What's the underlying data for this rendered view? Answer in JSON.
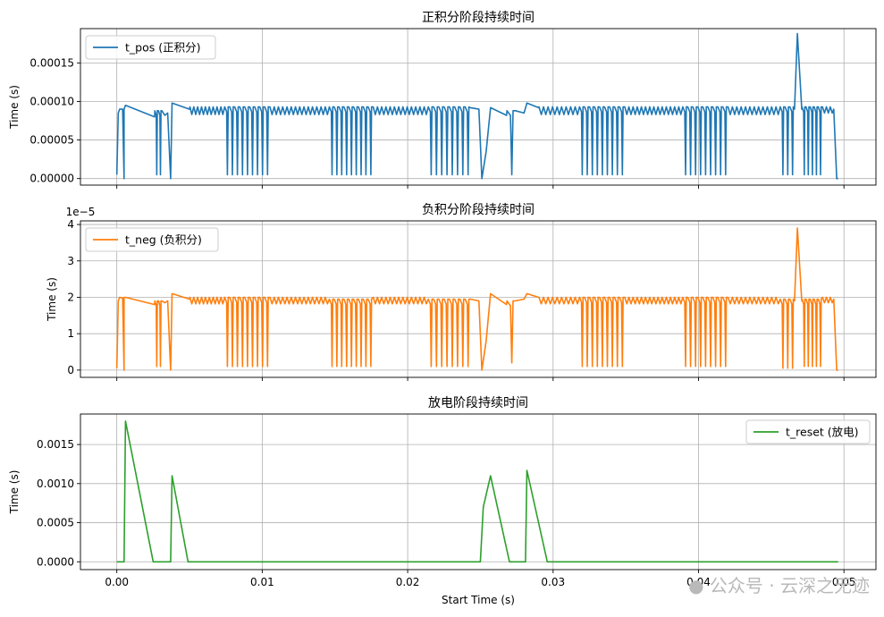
{
  "chart_data": [
    {
      "type": "line",
      "title": "正积分阶段持续时间",
      "ylabel": "Time (s)",
      "xlabel": "",
      "xlim": [
        -0.0025,
        0.0522
      ],
      "ylim": [
        -8.5e-06,
        0.0001945
      ],
      "yticks": [
        0,
        5e-05,
        0.0001,
        0.00015
      ],
      "yticklabels": [
        "0.00000",
        "0.00005",
        "0.00010",
        "0.00015"
      ],
      "grid": true,
      "legend_position": "upper-left",
      "color": "#1f77b4",
      "series": [
        {
          "name": "t_pos (正积分)",
          "seg_segments": [
            {
              "mode": "line",
              "points": [
                [
                  0.0,
                  5e-06
                ],
                [
                  0.0001,
                  8.5e-05
                ],
                [
                  0.0002,
                  9e-05
                ],
                [
                  0.0004,
                  9e-05
                ],
                [
                  0.0005,
                  0.0
                ],
                [
                  0.0005,
                  9e-05
                ],
                [
                  0.0006,
                  9.5e-05
                ],
                [
                  0.0026,
                  8e-05
                ]
              ]
            },
            {
              "mode": "dip",
              "x0": 0.0026,
              "x1": 0.0031,
              "n": 2,
              "peak": 8.8e-05,
              "low": 5e-06
            },
            {
              "mode": "line",
              "points": [
                [
                  0.0031,
                  8.8e-05
                ],
                [
                  0.0033,
                  8.2e-05
                ],
                [
                  0.0035,
                  8.5e-05
                ],
                [
                  0.0037,
                  0.0
                ],
                [
                  0.0038,
                  9.8e-05
                ],
                [
                  0.005,
                  9e-05
                ]
              ]
            },
            {
              "mode": "wave",
              "x0": 0.005,
              "x1": 0.0074,
              "n": 9,
              "peak": 9.3e-05,
              "low": 8.3e-05
            },
            {
              "mode": "dip",
              "x0": 0.0074,
              "x1": 0.0105,
              "n": 9,
              "peak": 9.3e-05,
              "low": 5e-06
            },
            {
              "mode": "wave",
              "x0": 0.0105,
              "x1": 0.0146,
              "n": 14,
              "peak": 9.3e-05,
              "low": 8.3e-05
            },
            {
              "mode": "dip",
              "x0": 0.0146,
              "x1": 0.0176,
              "n": 9,
              "peak": 9.3e-05,
              "low": 5e-06
            },
            {
              "mode": "wave",
              "x0": 0.0176,
              "x1": 0.0214,
              "n": 13,
              "peak": 9.3e-05,
              "low": 8.3e-05
            },
            {
              "mode": "dip",
              "x0": 0.0214,
              "x1": 0.0243,
              "n": 8,
              "peak": 9.3e-05,
              "low": 5e-06
            },
            {
              "mode": "line",
              "points": [
                [
                  0.0243,
                  9.2e-05
                ],
                [
                  0.0249,
                  9e-05
                ],
                [
                  0.0251,
                  0.0
                ],
                [
                  0.0254,
                  3.5e-05
                ],
                [
                  0.0257,
                  9.2e-05
                ],
                [
                  0.0268,
                  8.2e-05
                ]
              ]
            },
            {
              "mode": "dip",
              "x0": 0.0268,
              "x1": 0.0274,
              "n": 1,
              "peak": 8.8e-05,
              "low": 5e-06
            },
            {
              "mode": "line",
              "points": [
                [
                  0.0274,
                  8.8e-05
                ],
                [
                  0.028,
                  8.5e-05
                ],
                [
                  0.0282,
                  9.8e-05
                ],
                [
                  0.029,
                  9.2e-05
                ]
              ]
            },
            {
              "mode": "wave",
              "x0": 0.029,
              "x1": 0.0318,
              "n": 9,
              "peak": 9.3e-05,
              "low": 8.3e-05
            },
            {
              "mode": "dip",
              "x0": 0.0318,
              "x1": 0.0349,
              "n": 9,
              "peak": 9.3e-05,
              "low": 5e-06
            },
            {
              "mode": "wave",
              "x0": 0.0349,
              "x1": 0.0389,
              "n": 14,
              "peak": 9.3e-05,
              "low": 8.3e-05
            },
            {
              "mode": "dip",
              "x0": 0.0389,
              "x1": 0.042,
              "n": 9,
              "peak": 9.3e-05,
              "low": 5e-06
            },
            {
              "mode": "wave",
              "x0": 0.042,
              "x1": 0.0456,
              "n": 12,
              "peak": 9.3e-05,
              "low": 8.3e-05
            },
            {
              "mode": "dip",
              "x0": 0.0456,
              "x1": 0.0466,
              "n": 3,
              "peak": 9.3e-05,
              "low": 5e-06
            },
            {
              "mode": "line",
              "points": [
                [
                  0.0466,
                  9e-05
                ],
                [
                  0.0468,
                  0.000188
                ],
                [
                  0.0471,
                  9e-05
                ]
              ]
            },
            {
              "mode": "dip",
              "x0": 0.0471,
              "x1": 0.0485,
              "n": 5,
              "peak": 9.3e-05,
              "low": 5e-06
            },
            {
              "mode": "wave",
              "x0": 0.0485,
              "x1": 0.0493,
              "n": 3,
              "peak": 9.3e-05,
              "low": 8.5e-05
            },
            {
              "mode": "line",
              "points": [
                [
                  0.0493,
                  9e-05
                ],
                [
                  0.0495,
                  0.0
                ],
                [
                  0.0496,
                  0.0
                ]
              ]
            }
          ]
        }
      ]
    },
    {
      "type": "line",
      "title": "负积分阶段持续时间",
      "ylabel": "Time (s)",
      "xlabel": "",
      "offset_text": "1e−5",
      "xlim": [
        -0.0025,
        0.0522
      ],
      "ylim": [
        -0.2,
        4.1
      ],
      "yticks": [
        0,
        1,
        2,
        3,
        4
      ],
      "yticklabels": [
        "0",
        "1",
        "2",
        "3",
        "4"
      ],
      "grid": true,
      "legend_position": "upper-left",
      "color": "#ff7f0e",
      "series": [
        {
          "name": "t_neg (负积分)",
          "seg_segments": [
            {
              "mode": "line",
              "points": [
                [
                  0.0,
                  0.05
                ],
                [
                  0.0001,
                  1.9
                ],
                [
                  0.0002,
                  2.0
                ],
                [
                  0.0004,
                  1.98
                ],
                [
                  0.0005,
                  0.0
                ],
                [
                  0.0005,
                  2.0
                ],
                [
                  0.0006,
                  2.0
                ],
                [
                  0.0026,
                  1.8
                ]
              ]
            },
            {
              "mode": "dip",
              "x0": 0.0026,
              "x1": 0.0031,
              "n": 2,
              "peak": 1.9,
              "low": 0.1
            },
            {
              "mode": "line",
              "points": [
                [
                  0.0031,
                  1.9
                ],
                [
                  0.0033,
                  1.85
                ],
                [
                  0.0035,
                  1.9
                ],
                [
                  0.0037,
                  0.0
                ],
                [
                  0.0038,
                  2.1
                ],
                [
                  0.005,
                  1.95
                ]
              ]
            },
            {
              "mode": "wave",
              "x0": 0.005,
              "x1": 0.0074,
              "n": 9,
              "peak": 2.0,
              "low": 1.82
            },
            {
              "mode": "dip",
              "x0": 0.0074,
              "x1": 0.0105,
              "n": 9,
              "peak": 2.0,
              "low": 0.1
            },
            {
              "mode": "wave",
              "x0": 0.0105,
              "x1": 0.0146,
              "n": 14,
              "peak": 2.0,
              "low": 1.82
            },
            {
              "mode": "dip",
              "x0": 0.0146,
              "x1": 0.0176,
              "n": 9,
              "peak": 1.95,
              "low": 0.1
            },
            {
              "mode": "wave",
              "x0": 0.0176,
              "x1": 0.0214,
              "n": 13,
              "peak": 2.0,
              "low": 1.82
            },
            {
              "mode": "dip",
              "x0": 0.0214,
              "x1": 0.0243,
              "n": 8,
              "peak": 1.95,
              "low": 0.1
            },
            {
              "mode": "line",
              "points": [
                [
                  0.0243,
                  1.95
                ],
                [
                  0.0249,
                  1.9
                ],
                [
                  0.0251,
                  0.0
                ],
                [
                  0.0254,
                  0.8
                ],
                [
                  0.0257,
                  2.1
                ],
                [
                  0.0268,
                  1.8
                ]
              ]
            },
            {
              "mode": "dip",
              "x0": 0.0268,
              "x1": 0.0274,
              "n": 1,
              "peak": 1.9,
              "low": 0.2
            },
            {
              "mode": "line",
              "points": [
                [
                  0.0274,
                  1.9
                ],
                [
                  0.028,
                  1.95
                ],
                [
                  0.0282,
                  2.1
                ],
                [
                  0.029,
                  2.0
                ]
              ]
            },
            {
              "mode": "wave",
              "x0": 0.029,
              "x1": 0.0318,
              "n": 9,
              "peak": 2.0,
              "low": 1.82
            },
            {
              "mode": "dip",
              "x0": 0.0318,
              "x1": 0.0349,
              "n": 9,
              "peak": 2.0,
              "low": 0.1
            },
            {
              "mode": "wave",
              "x0": 0.0349,
              "x1": 0.0389,
              "n": 14,
              "peak": 2.0,
              "low": 1.82
            },
            {
              "mode": "dip",
              "x0": 0.0389,
              "x1": 0.042,
              "n": 9,
              "peak": 2.0,
              "low": 0.1
            },
            {
              "mode": "wave",
              "x0": 0.042,
              "x1": 0.0456,
              "n": 12,
              "peak": 2.0,
              "low": 1.82
            },
            {
              "mode": "dip",
              "x0": 0.0456,
              "x1": 0.0466,
              "n": 3,
              "peak": 1.95,
              "low": 0.05
            },
            {
              "mode": "line",
              "points": [
                [
                  0.0466,
                  1.9
                ],
                [
                  0.0468,
                  3.9
                ],
                [
                  0.0471,
                  1.9
                ]
              ]
            },
            {
              "mode": "dip",
              "x0": 0.0471,
              "x1": 0.0485,
              "n": 5,
              "peak": 1.95,
              "low": 0.1
            },
            {
              "mode": "wave",
              "x0": 0.0485,
              "x1": 0.0493,
              "n": 3,
              "peak": 2.0,
              "low": 1.85
            },
            {
              "mode": "line",
              "points": [
                [
                  0.0493,
                  1.95
                ],
                [
                  0.0495,
                  0.0
                ],
                [
                  0.0496,
                  0.0
                ]
              ]
            }
          ]
        }
      ]
    },
    {
      "type": "line",
      "title": "放电阶段持续时间",
      "ylabel": "Time (s)",
      "xlabel": "Start Time (s)",
      "xlim": [
        -0.0025,
        0.0522
      ],
      "ylim": [
        -0.0001,
        0.00189
      ],
      "xticks": [
        0.0,
        0.01,
        0.02,
        0.03,
        0.04,
        0.05
      ],
      "xticklabels": [
        "0.00",
        "0.01",
        "0.02",
        "0.03",
        "0.04",
        "0.05"
      ],
      "yticks": [
        0,
        0.0005,
        0.001,
        0.0015
      ],
      "yticklabels": [
        "0.0000",
        "0.0005",
        "0.0010",
        "0.0015"
      ],
      "grid": true,
      "legend_position": "upper-right",
      "color": "#2ca02c",
      "series": [
        {
          "name": "t_reset (放电)",
          "x": [
            0.0,
            0.0005,
            0.0006,
            0.0025,
            0.0037,
            0.0038,
            0.0049,
            0.025,
            0.0252,
            0.0257,
            0.027,
            0.0281,
            0.0282,
            0.0296,
            0.0496
          ],
          "values": [
            0.0,
            0.0,
            0.0018,
            0.0,
            0.0,
            0.0011,
            0.0,
            0.0,
            0.0007,
            0.0011,
            0.0,
            0.0,
            0.00117,
            0.0,
            0.0
          ]
        }
      ]
    }
  ],
  "watermark": "公众号 · 云深之无迹"
}
